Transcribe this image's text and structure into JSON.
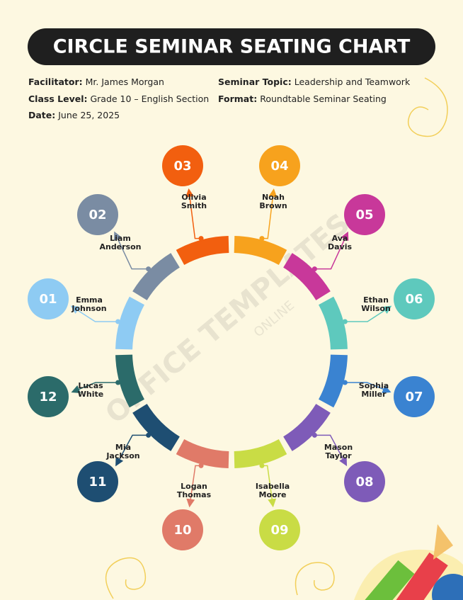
{
  "header": {
    "title": "CIRCLE SEMINAR SEATING CHART"
  },
  "info": [
    {
      "label": "Facilitator:",
      "value": "Mr. James Morgan"
    },
    {
      "label": "Class Level:",
      "value": "Grade 10 – English Section"
    },
    {
      "label": "Date:",
      "value": "June 25, 2025"
    },
    {
      "label": "Seminar Topic:",
      "value": "Leadership and Teamwork"
    },
    {
      "label": "Format:",
      "value": "Roundtable Seminar Seating"
    }
  ],
  "seats": [
    {
      "number": "01",
      "first": "Emma",
      "last": "Johnson",
      "color": "#8ecbf3"
    },
    {
      "number": "02",
      "first": "Liam",
      "last": "Anderson",
      "color": "#7a8ca3"
    },
    {
      "number": "03",
      "first": "Olivia",
      "last": "Smith",
      "color": "#f25f0f"
    },
    {
      "number": "04",
      "first": "Noah",
      "last": "Brown",
      "color": "#f7a21d"
    },
    {
      "number": "05",
      "first": "Ava",
      "last": "Davis",
      "color": "#c8389a"
    },
    {
      "number": "06",
      "first": "Ethan",
      "last": "Wilson",
      "color": "#5ec9bd"
    },
    {
      "number": "07",
      "first": "Sophia",
      "last": "Miller",
      "color": "#3a83d1"
    },
    {
      "number": "08",
      "first": "Mason",
      "last": "Taylor",
      "color": "#7e5bb8"
    },
    {
      "number": "09",
      "first": "Isabella",
      "last": "Moore",
      "color": "#c9dc45"
    },
    {
      "number": "10",
      "first": "Logan",
      "last": "Thomas",
      "color": "#e07a68"
    },
    {
      "number": "11",
      "first": "Mia",
      "last": "Jackson",
      "color": "#1e4e72"
    },
    {
      "number": "12",
      "first": "Lucas",
      "last": "White",
      "color": "#2b6b6a"
    }
  ],
  "watermark": {
    "main": "OFFICE TEMPLATES",
    "sub": "ONLINE"
  }
}
